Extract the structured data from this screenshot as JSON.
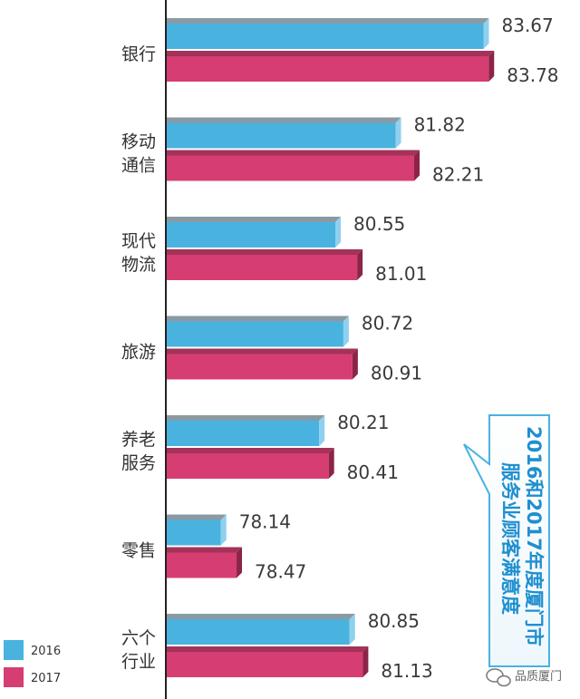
{
  "chart_data": {
    "type": "bar",
    "orientation": "horizontal",
    "categories": [
      [
        "银行"
      ],
      [
        "移动",
        "通信"
      ],
      [
        "现代",
        "物流"
      ],
      [
        "旅游"
      ],
      [
        "养老",
        "服务"
      ],
      [
        "零售"
      ],
      [
        "六个",
        "行业"
      ]
    ],
    "series": [
      {
        "name": "2016",
        "color": "#4ab2df",
        "values": [
          83.67,
          81.82,
          80.55,
          80.72,
          80.21,
          78.14,
          80.85
        ]
      },
      {
        "name": "2017",
        "color": "#d63d72",
        "values": [
          83.78,
          82.21,
          81.01,
          80.91,
          80.41,
          78.47,
          81.13
        ]
      }
    ],
    "value_labels": [
      [
        "83.67",
        "83.78"
      ],
      [
        "81.82",
        "82.21"
      ],
      [
        "80.55",
        "81.01"
      ],
      [
        "80.72",
        "80.91"
      ],
      [
        "80.21",
        "80.41"
      ],
      [
        "78.14",
        "78.47"
      ],
      [
        "80.85",
        "81.13"
      ]
    ],
    "annotation": {
      "lines": [
        "2016和2017年度厦门市",
        "服务业顾客满意度"
      ]
    },
    "legend": {
      "placement": "bottom-left",
      "items": [
        "2016",
        "2017"
      ]
    },
    "grid": false
  },
  "watermark": {
    "text": "品质厦门",
    "icon": "wechat-icon"
  }
}
